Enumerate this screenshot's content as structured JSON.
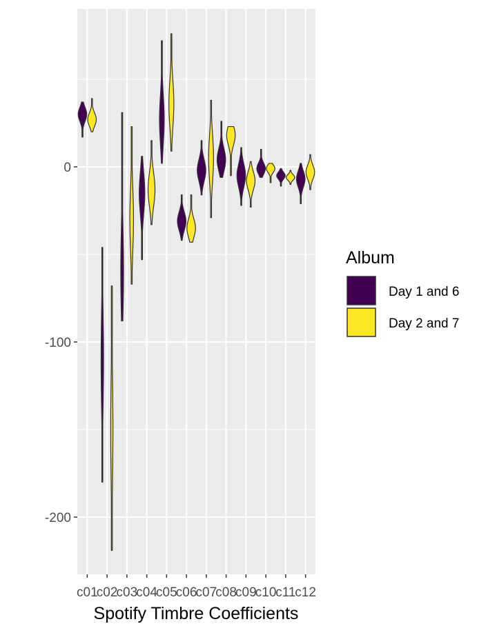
{
  "chart_data": {
    "type": "violin",
    "xlabel": "Spotify Timbre Coefficients",
    "ylabel": "",
    "ylim": [
      -232,
      90
    ],
    "yticks": [
      -200,
      -100,
      0
    ],
    "categories": [
      "c01",
      "c02",
      "c03",
      "c04",
      "c05",
      "c06",
      "c07",
      "c08",
      "c09",
      "c10",
      "c11",
      "c12"
    ],
    "legend": {
      "title": "Album",
      "position": "right",
      "entries": [
        {
          "label": "Day 1 and 6",
          "color": "#440154"
        },
        {
          "label": "Day 2 and 7",
          "color": "#FDE725"
        }
      ]
    },
    "series": [
      {
        "name": "Day 1 and 6",
        "color": "#440154",
        "ranges": [
          [
            17,
            37
          ],
          [
            -180,
            -46
          ],
          [
            -88,
            31
          ],
          [
            -53,
            6
          ],
          [
            2,
            72
          ],
          [
            -42,
            -16
          ],
          [
            -16,
            15
          ],
          [
            -6,
            26
          ],
          [
            -22,
            11
          ],
          [
            -6,
            10
          ],
          [
            -11,
            -1
          ],
          [
            -21,
            2
          ]
        ],
        "peaks": [
          30,
          -110,
          -60,
          -15,
          27,
          -31,
          -2,
          4,
          -5,
          -1,
          -5,
          -7
        ]
      },
      {
        "name": "Day 2 and 7",
        "color": "#FDE725",
        "ranges": [
          [
            20,
            39
          ],
          [
            -219,
            -68
          ],
          [
            -67,
            23
          ],
          [
            -33,
            15
          ],
          [
            9,
            76
          ],
          [
            -43,
            -16
          ],
          [
            -29,
            38
          ],
          [
            -5,
            23
          ],
          [
            -23,
            3
          ],
          [
            -9,
            2
          ],
          [
            -10,
            -2
          ],
          [
            -13,
            7
          ]
        ],
        "peaks": [
          27,
          -150,
          -30,
          -13,
          36,
          -35,
          5,
          18,
          -8,
          -1,
          -6,
          -3
        ]
      }
    ]
  }
}
